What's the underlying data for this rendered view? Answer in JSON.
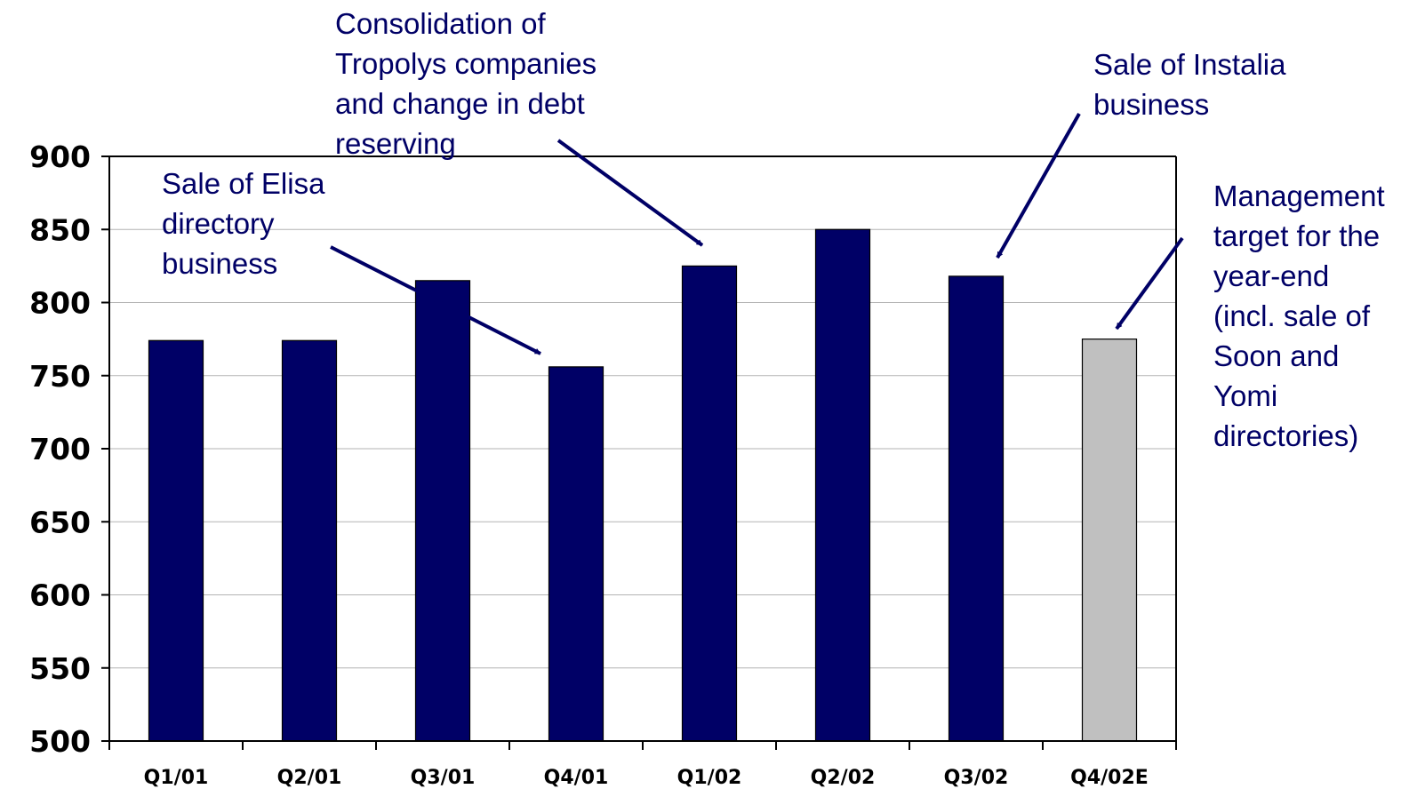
{
  "chart_data": {
    "type": "bar",
    "title": "",
    "xlabel": "",
    "ylabel": "",
    "ylim": [
      500,
      900
    ],
    "yticks": [
      "900",
      "850",
      "800",
      "750",
      "700",
      "650",
      "600",
      "550",
      "500"
    ],
    "grid": "horizontal",
    "categories": [
      "Q1/01",
      "Q2/01",
      "Q3/01",
      "Q4/01",
      "Q1/02",
      "Q2/02",
      "Q3/02",
      "Q4/02E"
    ],
    "values": [
      774,
      774,
      815,
      756,
      825,
      850,
      818,
      775
    ],
    "bar_colors": [
      "#000066",
      "#000066",
      "#000066",
      "#000066",
      "#000066",
      "#000066",
      "#000066",
      "#c0c0c0"
    ],
    "annotations": [
      {
        "lines": [
          "Sale of Elisa",
          "directory",
          "business"
        ],
        "points_to": "Q4/01"
      },
      {
        "lines": [
          "Consolidation of",
          "Tropolys companies",
          "and change in debt",
          "reserving"
        ],
        "points_to": "Q1/02"
      },
      {
        "lines": [
          "Sale of Instalia",
          "business"
        ],
        "points_to": "Q3/02"
      },
      {
        "lines": [
          "Management",
          "target for the",
          "year-end",
          "(incl. sale of",
          "Soon and",
          "Yomi",
          "directories)"
        ],
        "points_to": "Q4/02E"
      }
    ]
  }
}
